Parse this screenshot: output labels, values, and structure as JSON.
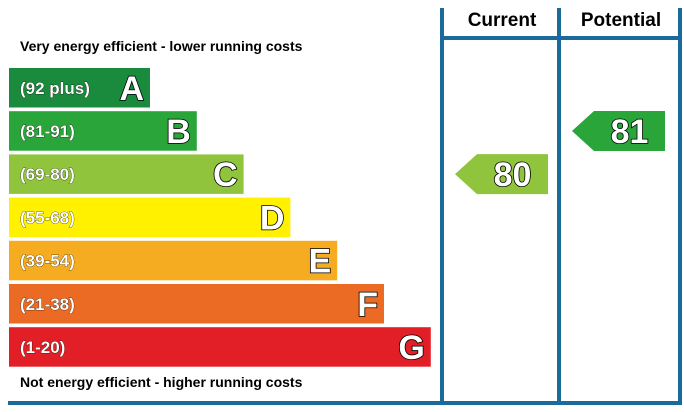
{
  "chart_data": {
    "type": "bar",
    "top_caption": "Very energy efficient - lower running costs",
    "bottom_caption": "Not energy efficient - higher running costs",
    "columns": [
      "Current",
      "Potential"
    ],
    "bands": [
      {
        "range": "(92 plus)",
        "letter": "A",
        "min": 92,
        "max": 100,
        "color": "#1a8a3c"
      },
      {
        "range": "(81-91)",
        "letter": "B",
        "min": 81,
        "max": 91,
        "color": "#2aa53a"
      },
      {
        "range": "(69-80)",
        "letter": "C",
        "min": 69,
        "max": 80,
        "color": "#8fc43c"
      },
      {
        "range": "(55-68)",
        "letter": "D",
        "min": 55,
        "max": 68,
        "color": "#fff100"
      },
      {
        "range": "(39-54)",
        "letter": "E",
        "min": 39,
        "max": 54,
        "color": "#f5ac20"
      },
      {
        "range": "(21-38)",
        "letter": "F",
        "min": 21,
        "max": 38,
        "color": "#ec6b24"
      },
      {
        "range": "(1-20)",
        "letter": "G",
        "min": 1,
        "max": 20,
        "color": "#e21f26"
      }
    ],
    "ratings": [
      {
        "column": "Current",
        "value": 80,
        "label": "80",
        "color": "#8fc43c"
      },
      {
        "column": "Potential",
        "value": 81,
        "label": "81",
        "color": "#2aa53a"
      }
    ],
    "frame_color": "#1a6b9a"
  }
}
